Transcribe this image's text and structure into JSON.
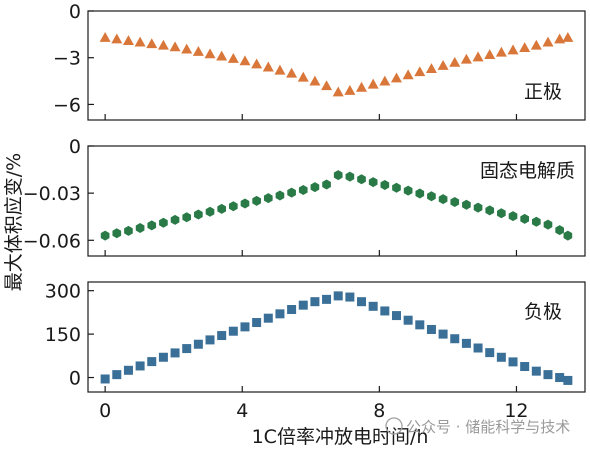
{
  "figure": {
    "ylabel": "最大体积应变/%",
    "xlabel": "1C倍率冲放电时间/h",
    "watermark": "公众号 · 储能科学与技术"
  },
  "chart_data": [
    {
      "type": "scatter",
      "series_label": "正极",
      "marker": "triangle",
      "color": "#d9773a",
      "x": [
        0,
        0.34,
        0.68,
        1.02,
        1.36,
        1.7,
        2.04,
        2.38,
        2.72,
        3.06,
        3.4,
        3.74,
        4.08,
        4.42,
        4.76,
        5.1,
        5.44,
        5.78,
        6.12,
        6.46,
        6.8,
        7.14,
        7.48,
        7.82,
        8.16,
        8.5,
        8.84,
        9.18,
        9.52,
        9.86,
        10.2,
        10.54,
        10.88,
        11.22,
        11.56,
        11.9,
        12.24,
        12.58,
        12.92,
        13.26,
        13.5
      ],
      "y": [
        -1.7,
        -1.8,
        -1.9,
        -2.0,
        -2.1,
        -2.2,
        -2.3,
        -2.45,
        -2.6,
        -2.75,
        -2.9,
        -3.05,
        -3.2,
        -3.4,
        -3.6,
        -3.8,
        -4.0,
        -4.25,
        -4.5,
        -4.8,
        -5.2,
        -5.1,
        -4.9,
        -4.7,
        -4.5,
        -4.3,
        -4.1,
        -3.9,
        -3.7,
        -3.5,
        -3.3,
        -3.1,
        -2.95,
        -2.8,
        -2.65,
        -2.5,
        -2.35,
        -2.2,
        -2.0,
        -1.8,
        -1.7
      ],
      "yticks": [
        0,
        -3,
        -6
      ],
      "ytick_labels": [
        "0",
        "−3",
        "−6"
      ],
      "ylim": [
        -7,
        0
      ],
      "xlim": [
        -0.5,
        14.0
      ]
    },
    {
      "type": "scatter",
      "series_label": "固态电解质",
      "marker": "hexagon",
      "color": "#2a7a48",
      "x": [
        0,
        0.34,
        0.68,
        1.02,
        1.36,
        1.7,
        2.04,
        2.38,
        2.72,
        3.06,
        3.4,
        3.74,
        4.08,
        4.42,
        4.76,
        5.1,
        5.44,
        5.78,
        6.12,
        6.46,
        6.8,
        7.14,
        7.48,
        7.82,
        8.16,
        8.5,
        8.84,
        9.18,
        9.52,
        9.86,
        10.2,
        10.54,
        10.88,
        11.22,
        11.56,
        11.9,
        12.24,
        12.58,
        12.92,
        13.26,
        13.5
      ],
      "y": [
        -0.057,
        -0.0555,
        -0.054,
        -0.0522,
        -0.0505,
        -0.0488,
        -0.047,
        -0.0453,
        -0.0436,
        -0.0418,
        -0.04,
        -0.0383,
        -0.0366,
        -0.0349,
        -0.0332,
        -0.0315,
        -0.0297,
        -0.028,
        -0.0262,
        -0.0245,
        -0.0185,
        -0.0195,
        -0.0212,
        -0.023,
        -0.0248,
        -0.0266,
        -0.0284,
        -0.0302,
        -0.032,
        -0.0338,
        -0.0356,
        -0.0374,
        -0.0392,
        -0.041,
        -0.0428,
        -0.0446,
        -0.0464,
        -0.0482,
        -0.05,
        -0.0535,
        -0.057
      ],
      "yticks": [
        0,
        -0.03,
        -0.06
      ],
      "ytick_labels": [
        "0",
        "−0.03",
        "−0.06"
      ],
      "ylim": [
        -0.07,
        0
      ],
      "xlim": [
        -0.5,
        14.0
      ]
    },
    {
      "type": "scatter",
      "series_label": "负极",
      "marker": "square",
      "color": "#3a6f98",
      "x": [
        0,
        0.34,
        0.68,
        1.02,
        1.36,
        1.7,
        2.04,
        2.38,
        2.72,
        3.06,
        3.4,
        3.74,
        4.08,
        4.42,
        4.76,
        5.1,
        5.44,
        5.78,
        6.12,
        6.46,
        6.8,
        7.14,
        7.48,
        7.82,
        8.16,
        8.5,
        8.84,
        9.18,
        9.52,
        9.86,
        10.2,
        10.54,
        10.88,
        11.22,
        11.56,
        11.9,
        12.24,
        12.58,
        12.92,
        13.26,
        13.5
      ],
      "y": [
        -5,
        10,
        25,
        40,
        55,
        70,
        85,
        100,
        115,
        130,
        145,
        160,
        175,
        190,
        205,
        220,
        235,
        250,
        262,
        270,
        282,
        278,
        262,
        246,
        230,
        214,
        198,
        182,
        166,
        150,
        134,
        118,
        102,
        86,
        70,
        54,
        38,
        22,
        10,
        0,
        -10
      ],
      "yticks": [
        300,
        150,
        0
      ],
      "ytick_labels": [
        "300",
        "150",
        "0"
      ],
      "ylim": [
        -50,
        330
      ],
      "xlim": [
        -0.5,
        14.0
      ],
      "xticks": [
        0,
        4,
        8,
        12
      ],
      "xtick_labels": [
        "0",
        "4",
        "8",
        "12"
      ]
    }
  ]
}
